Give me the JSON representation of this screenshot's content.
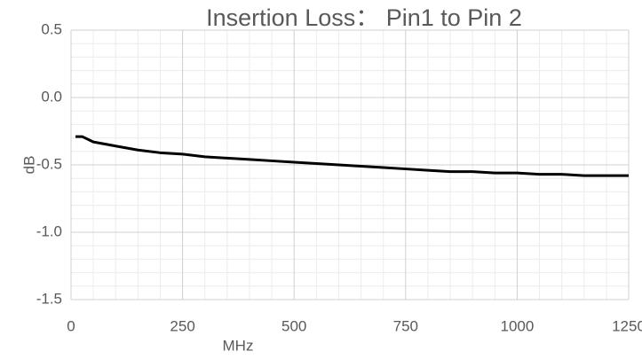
{
  "chart_data": {
    "type": "line",
    "title": "Insertion Loss： Pin1 to Pin 2",
    "x_label": "MHz",
    "y_label": "dB",
    "x": [
      10,
      25,
      50,
      100,
      150,
      200,
      250,
      300,
      350,
      400,
      450,
      500,
      550,
      600,
      650,
      700,
      750,
      800,
      850,
      900,
      950,
      1000,
      1050,
      1100,
      1150,
      1200,
      1250
    ],
    "series": [
      {
        "name": "Pin1 to Pin 2",
        "color": "#000000",
        "values": [
          -0.29,
          -0.29,
          -0.33,
          -0.36,
          -0.39,
          -0.41,
          -0.42,
          -0.44,
          -0.45,
          -0.46,
          -0.47,
          -0.48,
          -0.49,
          -0.5,
          -0.51,
          -0.52,
          -0.53,
          -0.54,
          -0.55,
          -0.55,
          -0.56,
          -0.56,
          -0.57,
          -0.57,
          -0.58,
          -0.58,
          -0.58
        ]
      }
    ],
    "xlim": [
      0,
      1250
    ],
    "xticks": [
      0,
      250,
      500,
      750,
      1000,
      1250
    ],
    "ylim": [
      -1.5,
      0.5
    ],
    "yticks": [
      0.5,
      {
        "value": 0,
        "label": "0.0"
      },
      -0.5,
      {
        "value": -1,
        "label": "-1.0"
      },
      -1.5
    ],
    "grid": true,
    "minor_grid": 5
  }
}
